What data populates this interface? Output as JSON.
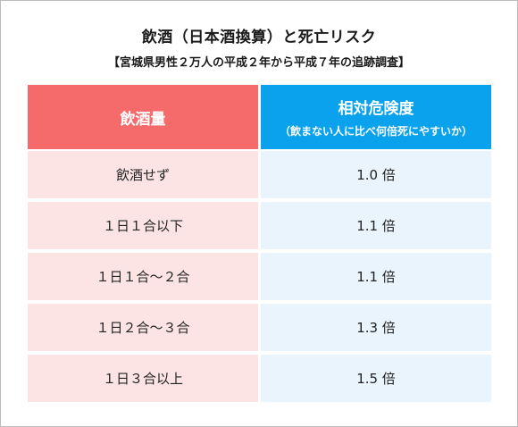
{
  "title": "飲酒（日本酒換算）と死亡リスク",
  "subtitle": "【宮城県男性２万人の平成２年から平成７年の追跡調査】",
  "table": {
    "header": {
      "left": "飲酒量",
      "right_main": "相対危険度",
      "right_sub": "（飲まない人に比べ何倍死にやすいか）"
    },
    "rows": [
      {
        "amount": "飲酒せず",
        "risk": "1.0 倍"
      },
      {
        "amount": "１日１合以下",
        "risk": "1.1 倍"
      },
      {
        "amount": "１日１合〜２合",
        "risk": "1.1 倍"
      },
      {
        "amount": "１日２合〜３合",
        "risk": "1.3 倍"
      },
      {
        "amount": "１日３合以上",
        "risk": "1.5 倍"
      }
    ]
  },
  "colors": {
    "header_left": "#f56a6a",
    "header_right": "#0aa2ec",
    "body_left": "#fde4e4",
    "body_right": "#e9f4fd"
  }
}
